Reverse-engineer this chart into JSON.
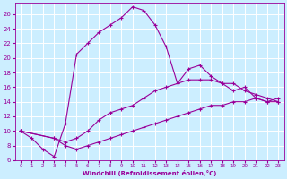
{
  "xlabel": "Windchill (Refroidissement éolien,°C)",
  "xlim": [
    -0.5,
    23.5
  ],
  "ylim": [
    6,
    27.5
  ],
  "yticks": [
    6,
    8,
    10,
    12,
    14,
    16,
    18,
    20,
    22,
    24,
    26
  ],
  "xticks": [
    0,
    1,
    2,
    3,
    4,
    5,
    6,
    7,
    8,
    9,
    10,
    11,
    12,
    13,
    14,
    15,
    16,
    17,
    18,
    19,
    20,
    21,
    22,
    23
  ],
  "bg_color": "#cceeff",
  "line_color": "#990099",
  "grid_color": "#ffffff",
  "line1_x": [
    0,
    1,
    2,
    3,
    4,
    5,
    6,
    7,
    8,
    9,
    10,
    11,
    12,
    13,
    14,
    15,
    16,
    17,
    18,
    19,
    20,
    21,
    22,
    23
  ],
  "line1_y": [
    10.0,
    9.0,
    7.5,
    6.5,
    11.0,
    20.5,
    22.0,
    23.5,
    24.5,
    25.5,
    27.0,
    26.5,
    24.5,
    21.5,
    16.5,
    18.5,
    19.0,
    17.5,
    16.5,
    15.5,
    16.0,
    14.5,
    14.0,
    14.0
  ],
  "line2_x": [
    0,
    3,
    4,
    5,
    6,
    7,
    8,
    9,
    10,
    11,
    12,
    13,
    14,
    15,
    16,
    17,
    18,
    19,
    20,
    21,
    22,
    23
  ],
  "line2_y": [
    10.0,
    9.0,
    8.5,
    9.0,
    10.0,
    11.5,
    12.5,
    13.0,
    13.5,
    14.5,
    15.5,
    16.0,
    16.5,
    17.0,
    17.0,
    17.0,
    16.5,
    16.5,
    15.5,
    15.0,
    14.5,
    14.0
  ],
  "line3_x": [
    0,
    3,
    4,
    5,
    6,
    7,
    8,
    9,
    10,
    11,
    12,
    13,
    14,
    15,
    16,
    17,
    18,
    19,
    20,
    21,
    22,
    23
  ],
  "line3_y": [
    10.0,
    9.0,
    8.0,
    7.5,
    8.0,
    8.5,
    9.0,
    9.5,
    10.0,
    10.5,
    11.0,
    11.5,
    12.0,
    12.5,
    13.0,
    13.5,
    13.5,
    14.0,
    14.0,
    14.5,
    14.0,
    14.5
  ]
}
